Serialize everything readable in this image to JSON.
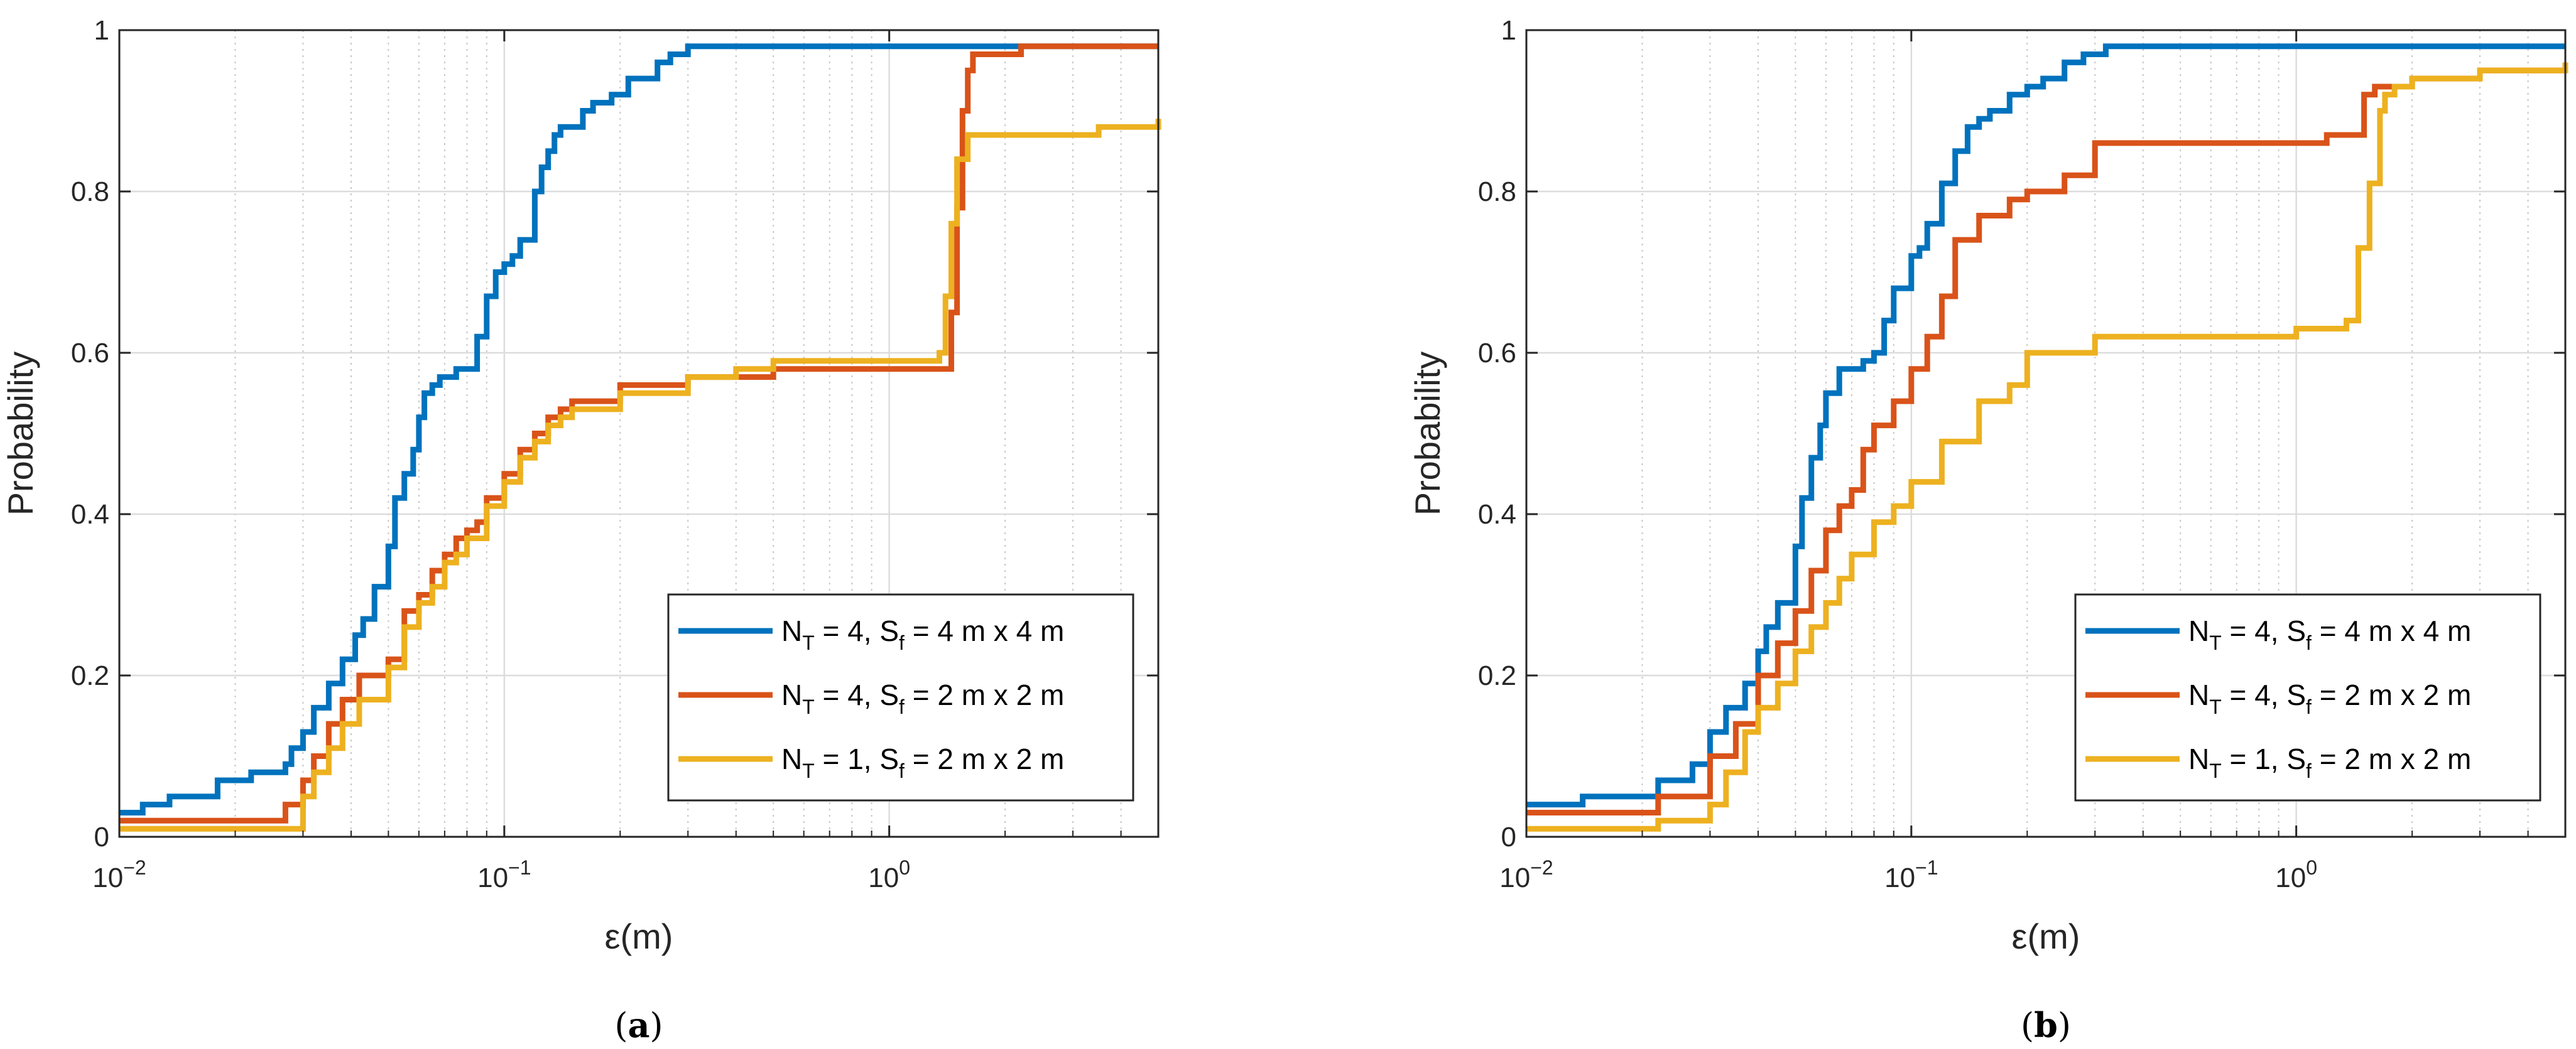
{
  "chart_data": [
    {
      "type": "line",
      "panel_label": "a",
      "xlabel": "ε(m)",
      "ylabel": "Probability",
      "xscale": "log",
      "xlim": [
        0.01,
        5
      ],
      "ylim": [
        0,
        1
      ],
      "x_ticks": [
        {
          "base": "10",
          "exp": "−2",
          "value": 0.01
        },
        {
          "base": "10",
          "exp": "−1",
          "value": 0.1
        },
        {
          "base": "10",
          "exp": "0",
          "value": 1
        }
      ],
      "y_ticks": [
        "0",
        "0.2",
        "0.4",
        "0.6",
        "0.8",
        "1"
      ],
      "grid": true,
      "legend_position": "bottom-right",
      "series": [
        {
          "legend": {
            "main1": "N",
            "sub1": "T",
            "main2": " = 4, S",
            "sub2": "f",
            "main3": " = 4 m x 4 m"
          },
          "color": "#0072BD",
          "x": [
            0.01,
            0.0115,
            0.0135,
            0.018,
            0.022,
            0.027,
            0.028,
            0.03,
            0.032,
            0.035,
            0.038,
            0.041,
            0.043,
            0.046,
            0.05,
            0.052,
            0.055,
            0.058,
            0.06,
            0.062,
            0.065,
            0.068,
            0.07,
            0.075,
            0.085,
            0.09,
            0.095,
            0.1,
            0.105,
            0.11,
            0.12,
            0.125,
            0.13,
            0.135,
            0.14,
            0.15,
            0.16,
            0.17,
            0.19,
            0.21,
            0.25,
            0.27,
            0.3,
            0.32,
            1.0,
            2.0,
            5.0
          ],
          "y": [
            0.03,
            0.04,
            0.05,
            0.07,
            0.08,
            0.09,
            0.11,
            0.13,
            0.16,
            0.19,
            0.22,
            0.25,
            0.27,
            0.31,
            0.36,
            0.42,
            0.45,
            0.48,
            0.52,
            0.55,
            0.56,
            0.57,
            0.57,
            0.58,
            0.62,
            0.67,
            0.7,
            0.71,
            0.72,
            0.74,
            0.8,
            0.83,
            0.85,
            0.87,
            0.88,
            0.88,
            0.9,
            0.91,
            0.92,
            0.94,
            0.96,
            0.97,
            0.98,
            0.98,
            0.98,
            0.98,
            0.98
          ]
        },
        {
          "legend": {
            "main1": "N",
            "sub1": "T",
            "main2": " = 4, S",
            "sub2": "f",
            "main3": " = 2 m x 2 m"
          },
          "color": "#D95319",
          "x": [
            0.01,
            0.022,
            0.027,
            0.03,
            0.032,
            0.035,
            0.038,
            0.042,
            0.05,
            0.055,
            0.06,
            0.065,
            0.07,
            0.075,
            0.08,
            0.085,
            0.09,
            0.1,
            0.11,
            0.12,
            0.13,
            0.14,
            0.15,
            0.2,
            0.3,
            0.5,
            1.0,
            1.4,
            1.45,
            1.5,
            1.55,
            1.6,
            1.65,
            1.7,
            2.0,
            2.2,
            3.0,
            5.0
          ],
          "y": [
            0.02,
            0.02,
            0.04,
            0.07,
            0.1,
            0.14,
            0.17,
            0.2,
            0.22,
            0.28,
            0.3,
            0.33,
            0.35,
            0.37,
            0.38,
            0.39,
            0.42,
            0.45,
            0.48,
            0.5,
            0.52,
            0.53,
            0.54,
            0.56,
            0.57,
            0.58,
            0.58,
            0.58,
            0.65,
            0.78,
            0.9,
            0.95,
            0.97,
            0.97,
            0.97,
            0.98,
            0.98,
            0.98
          ]
        },
        {
          "legend": {
            "main1": "N",
            "sub1": "T",
            "main2": " = 1, S",
            "sub2": "f",
            "main3": " = 2 m x 2 m"
          },
          "color": "#EDB120",
          "x": [
            0.01,
            0.022,
            0.03,
            0.032,
            0.035,
            0.038,
            0.042,
            0.05,
            0.055,
            0.06,
            0.065,
            0.07,
            0.075,
            0.08,
            0.09,
            0.1,
            0.11,
            0.12,
            0.13,
            0.14,
            0.15,
            0.2,
            0.3,
            0.4,
            0.5,
            1.0,
            1.35,
            1.4,
            1.45,
            1.5,
            1.6,
            1.7,
            2.0,
            3.0,
            3.5,
            5.0
          ],
          "y": [
            0.01,
            0.01,
            0.05,
            0.08,
            0.11,
            0.14,
            0.17,
            0.21,
            0.26,
            0.29,
            0.31,
            0.34,
            0.35,
            0.37,
            0.41,
            0.44,
            0.47,
            0.49,
            0.51,
            0.52,
            0.53,
            0.55,
            0.57,
            0.58,
            0.59,
            0.59,
            0.6,
            0.67,
            0.76,
            0.84,
            0.87,
            0.87,
            0.87,
            0.87,
            0.88,
            0.89
          ]
        }
      ]
    },
    {
      "type": "line",
      "panel_label": "b",
      "xlabel": "ε(m)",
      "ylabel": "Probability",
      "xscale": "log",
      "xlim": [
        0.01,
        5
      ],
      "ylim": [
        0,
        1
      ],
      "x_ticks": [
        {
          "base": "10",
          "exp": "−2",
          "value": 0.01
        },
        {
          "base": "10",
          "exp": "−1",
          "value": 0.1
        },
        {
          "base": "10",
          "exp": "0",
          "value": 1
        }
      ],
      "y_ticks": [
        "0",
        "0.2",
        "0.4",
        "0.6",
        "0.8",
        "1"
      ],
      "grid": true,
      "legend_position": "bottom-right",
      "series": [
        {
          "legend": {
            "main1": "N",
            "sub1": "T",
            "main2": " = 4, S",
            "sub2": "f",
            "main3": " = 4 m x 4 m"
          },
          "color": "#0072BD",
          "x": [
            0.01,
            0.014,
            0.022,
            0.027,
            0.03,
            0.033,
            0.037,
            0.04,
            0.042,
            0.045,
            0.05,
            0.052,
            0.055,
            0.058,
            0.06,
            0.065,
            0.07,
            0.075,
            0.08,
            0.085,
            0.09,
            0.1,
            0.105,
            0.11,
            0.12,
            0.13,
            0.14,
            0.15,
            0.16,
            0.18,
            0.2,
            0.22,
            0.25,
            0.28,
            0.32,
            1.0,
            5.0
          ],
          "y": [
            0.04,
            0.05,
            0.07,
            0.09,
            0.13,
            0.16,
            0.19,
            0.23,
            0.26,
            0.29,
            0.36,
            0.42,
            0.47,
            0.51,
            0.55,
            0.58,
            0.58,
            0.59,
            0.6,
            0.64,
            0.68,
            0.72,
            0.73,
            0.76,
            0.81,
            0.85,
            0.88,
            0.89,
            0.9,
            0.92,
            0.93,
            0.94,
            0.96,
            0.97,
            0.98,
            0.98,
            0.98
          ]
        },
        {
          "legend": {
            "main1": "N",
            "sub1": "T",
            "main2": " = 4, S",
            "sub2": "f",
            "main3": " = 2 m x 2 m"
          },
          "color": "#D95319",
          "x": [
            0.01,
            0.022,
            0.03,
            0.035,
            0.04,
            0.045,
            0.05,
            0.055,
            0.06,
            0.065,
            0.07,
            0.075,
            0.08,
            0.09,
            0.1,
            0.11,
            0.12,
            0.13,
            0.15,
            0.18,
            0.2,
            0.25,
            0.3,
            1.0,
            1.2,
            1.5,
            1.6,
            2.0,
            3.0,
            5.0
          ],
          "y": [
            0.03,
            0.05,
            0.1,
            0.14,
            0.2,
            0.24,
            0.28,
            0.33,
            0.38,
            0.41,
            0.43,
            0.48,
            0.51,
            0.54,
            0.58,
            0.62,
            0.67,
            0.74,
            0.77,
            0.79,
            0.8,
            0.82,
            0.86,
            0.86,
            0.87,
            0.92,
            0.93,
            0.94,
            0.95,
            0.95
          ]
        },
        {
          "legend": {
            "main1": "N",
            "sub1": "T",
            "main2": " = 1, S",
            "sub2": "f",
            "main3": " = 2 m x 2 m"
          },
          "color": "#EDB120",
          "x": [
            0.01,
            0.022,
            0.03,
            0.033,
            0.037,
            0.04,
            0.045,
            0.05,
            0.055,
            0.06,
            0.065,
            0.07,
            0.08,
            0.09,
            0.1,
            0.12,
            0.15,
            0.18,
            0.2,
            0.3,
            1.0,
            1.35,
            1.45,
            1.55,
            1.65,
            1.7,
            1.8,
            2.0,
            3.0,
            5.0
          ],
          "y": [
            0.01,
            0.02,
            0.04,
            0.08,
            0.13,
            0.16,
            0.19,
            0.23,
            0.26,
            0.29,
            0.32,
            0.35,
            0.39,
            0.41,
            0.44,
            0.49,
            0.54,
            0.56,
            0.6,
            0.62,
            0.63,
            0.64,
            0.73,
            0.81,
            0.9,
            0.92,
            0.93,
            0.94,
            0.95,
            0.96
          ]
        }
      ]
    }
  ]
}
